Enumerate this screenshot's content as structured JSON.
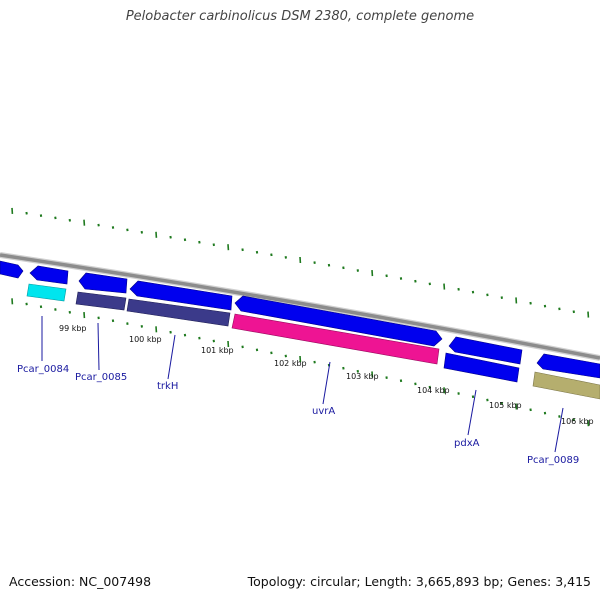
{
  "title": "Pelobacter carbinolicus DSM 2380, complete genome",
  "footer": {
    "accession": "Accession: NC_007498",
    "summary": "Topology: circular; Length: 3,665,893 bp; Genes: 3,415"
  },
  "colors": {
    "backbone": "#8c8c8c",
    "cds_forward": "#0000ee",
    "cds_reverse": "#0000ee",
    "cog_cyan": "#00e5ee",
    "cog_slate": "#3b3a8a",
    "cog_magenta": "#ee1493",
    "cog_khaki": "#b5ae6e",
    "ruler": "#1f7a1f",
    "label": "#1a1aa0"
  },
  "tick_labels": [
    "99 kbp",
    "100 kbp",
    "101 kbp",
    "102 kbp",
    "103 kbp",
    "104 kbp",
    "105 kbp",
    "106 kbp"
  ],
  "gene_labels": [
    "Pcar_0084",
    "Pcar_0085",
    "trkH",
    "uvrA",
    "pdxA",
    "Pcar_0089"
  ]
}
